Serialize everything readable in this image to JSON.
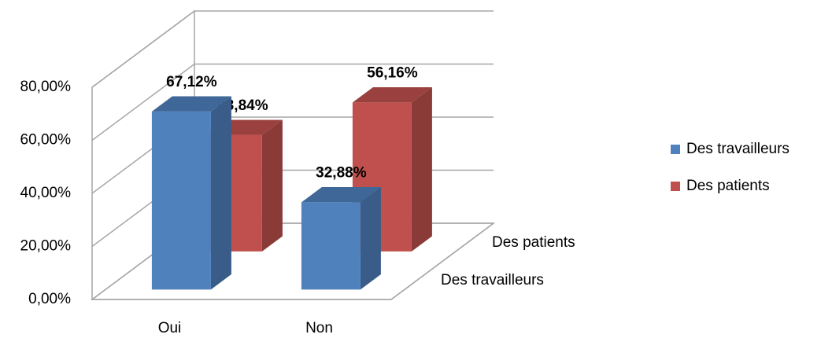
{
  "chart_data": {
    "type": "bar3d",
    "categories": [
      "Oui",
      "Non"
    ],
    "series": [
      {
        "name": "Des travailleurs",
        "color": "#4f81bd",
        "values": [
          67.12,
          32.88
        ],
        "value_labels": [
          "67,12%",
          "32,88%"
        ]
      },
      {
        "name": "Des patients",
        "color": "#c0504d",
        "values": [
          43.84,
          56.16
        ],
        "value_labels": [
          "43,84%",
          "56,16%"
        ]
      }
    ],
    "ylim": [
      0,
      80
    ],
    "yticks": [
      {
        "value": 0,
        "label": "0,00%"
      },
      {
        "value": 20,
        "label": "20,00%"
      },
      {
        "value": 40,
        "label": "40,00%"
      },
      {
        "value": 60,
        "label": "60,00%"
      },
      {
        "value": 80,
        "label": "80,00%"
      }
    ],
    "grid": true,
    "legend": "right"
  }
}
